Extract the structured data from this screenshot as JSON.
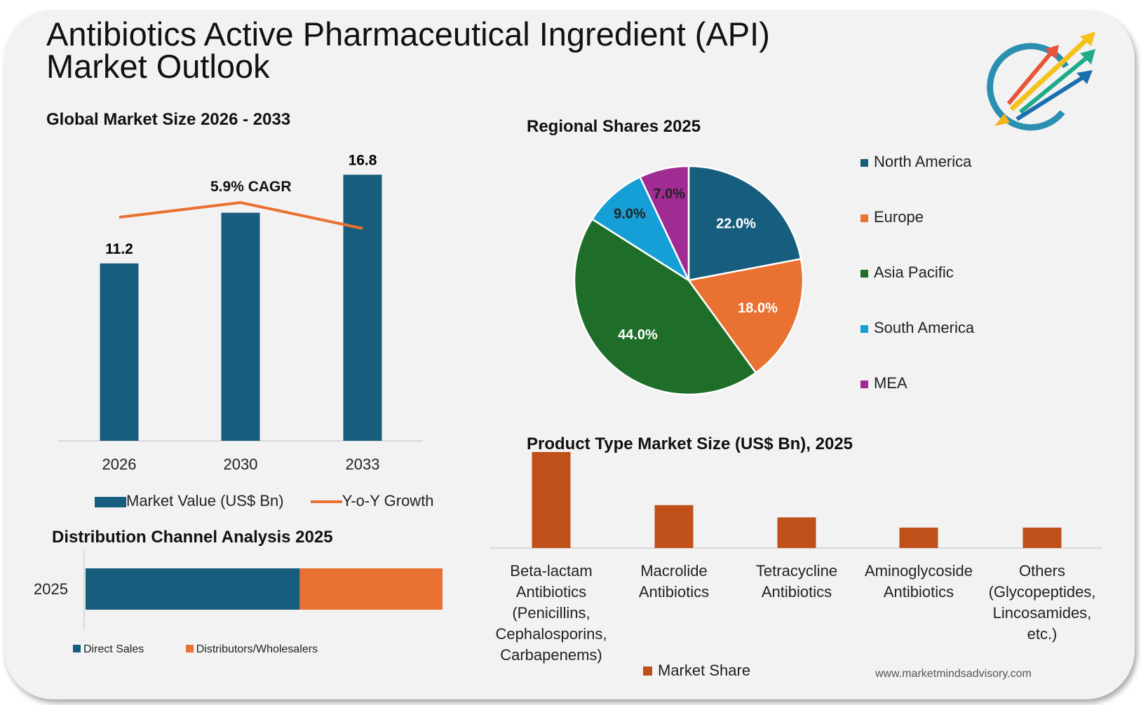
{
  "title_line1": "Antibiotics Active Pharmaceutical Ingredient (API)",
  "title_line2": "Market Outlook",
  "website": "www.marketmindsadvisory.com",
  "colors": {
    "blue": "#175d7e",
    "orange": "#e97132",
    "green": "#1e6e29",
    "light_blue": "#159fd6",
    "purple": "#a02b93",
    "product": "#c0501a",
    "background": "#f2f2f2"
  },
  "chart_data": [
    {
      "type": "bar",
      "title": "Global Market Size 2026 - 2033",
      "categories": [
        "2026",
        "2030",
        "2033"
      ],
      "series": [
        {
          "name": "Market Value (US$ Bn)",
          "values": [
            11.2,
            14.4,
            16.8
          ],
          "data_labels": [
            "11.2",
            "",
            "16.8"
          ]
        },
        {
          "name": "Y-o-Y Growth",
          "type": "line",
          "relative_values": [
            0.55,
            0.65,
            0.48
          ]
        }
      ],
      "annotation": "5.9% CAGR",
      "grid": false,
      "legend": "bottom"
    },
    {
      "type": "pie",
      "title": "Regional Shares 2025",
      "labels": [
        "North America",
        "Europe",
        "Asia Pacific",
        "South America",
        "MEA"
      ],
      "values": [
        22.0,
        18.0,
        44.0,
        9.0,
        7.0
      ],
      "data_labels": [
        "22.0%",
        "18.0%",
        "44.0%",
        "9.0%",
        "7.0%"
      ],
      "colors": [
        "#175d7e",
        "#e97132",
        "#1e6e29",
        "#159fd6",
        "#a02b93"
      ],
      "legend": "right"
    },
    {
      "type": "bar",
      "title": "Product Type Market Size (US$ Bn), 2025",
      "categories": [
        "Beta-lactam Antibiotics (Penicillins, Cephalosporins, Carbapenems)",
        "Macrolide Antibiotics",
        "Tetracycline Antibiotics",
        "Aminoglycoside Antibiotics",
        "Others (Glycopeptides, Lincosamides, etc.)"
      ],
      "category_lines": [
        [
          "Beta-lactam",
          "Antibiotics",
          "(Penicillins,",
          "Cephalosporins,",
          "Carbapenems)"
        ],
        [
          "Macrolide",
          "Antibiotics"
        ],
        [
          "Tetracycline",
          "Antibiotics"
        ],
        [
          "Aminoglycoside",
          "Antibiotics"
        ],
        [
          "Others",
          "(Glycopeptides,",
          "Lincosamides,",
          "etc.)"
        ]
      ],
      "series": [
        {
          "name": "Market Share",
          "values": [
            4.7,
            2.1,
            1.5,
            1.0,
            1.0
          ]
        }
      ],
      "grid": false,
      "legend": "bottom"
    },
    {
      "type": "bar",
      "orientation": "horizontal-stacked",
      "title": "Distribution Channel Analysis 2025",
      "categories": [
        "2025"
      ],
      "series": [
        {
          "name": "Direct Sales",
          "values": [
            60
          ]
        },
        {
          "name": "Distributors/Wholesalers",
          "values": [
            40
          ]
        }
      ],
      "legend": "bottom"
    }
  ]
}
